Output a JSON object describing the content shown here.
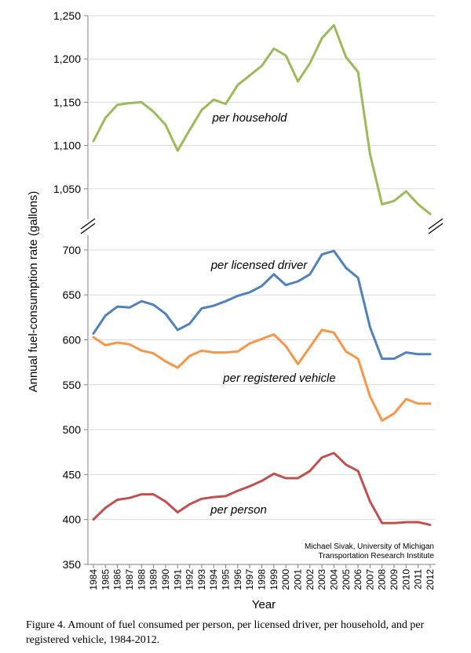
{
  "chart_data": {
    "type": "line",
    "x": [
      1984,
      1985,
      1986,
      1987,
      1988,
      1989,
      1990,
      1991,
      1992,
      1993,
      1994,
      1995,
      1996,
      1997,
      1998,
      1999,
      2000,
      2001,
      2002,
      2003,
      2004,
      2005,
      2006,
      2007,
      2008,
      2009,
      2010,
      2011,
      2012
    ],
    "xlabel": "Year",
    "ylabel": "Annual fuel-consumption rate (gallons)",
    "upper_panel": {
      "ylim": [
        1010,
        1250
      ],
      "yticks": [
        1050,
        1100,
        1150,
        1200,
        1250
      ]
    },
    "lower_panel": {
      "ylim": [
        350,
        720
      ],
      "yticks": [
        350,
        400,
        450,
        500,
        550,
        600,
        650,
        700
      ]
    },
    "axis_break": true,
    "grid": "horizontal",
    "series": [
      {
        "name": "per household",
        "panel": "upper",
        "color": "#9BBB59",
        "values": [
          1105,
          1132,
          1147,
          1149,
          1150,
          1139,
          1124,
          1094,
          1118,
          1141,
          1153,
          1148,
          1170,
          1181,
          1192,
          1212,
          1204,
          1174,
          1195,
          1224,
          1239,
          1202,
          1185,
          1090,
          1032,
          1036,
          1047,
          1032,
          1021
        ]
      },
      {
        "name": "per licensed driver",
        "panel": "lower",
        "color": "#4F81BD",
        "values": [
          607,
          627,
          637,
          636,
          643,
          639,
          629,
          611,
          618,
          635,
          638,
          643,
          649,
          653,
          660,
          673,
          661,
          665,
          673,
          695,
          699,
          680,
          669,
          614,
          579,
          579,
          586,
          584,
          584
        ]
      },
      {
        "name": "per registered vehicle",
        "panel": "lower",
        "color": "#F79646",
        "values": [
          603,
          594,
          597,
          595,
          588,
          585,
          576,
          569,
          582,
          588,
          586,
          586,
          587,
          596,
          601,
          606,
          593,
          573,
          592,
          611,
          608,
          587,
          579,
          537,
          510,
          518,
          534,
          529,
          529
        ]
      },
      {
        "name": "per person",
        "panel": "lower",
        "color": "#C0504D",
        "values": [
          400,
          413,
          422,
          424,
          428,
          428,
          420,
          408,
          417,
          423,
          425,
          426,
          432,
          437,
          443,
          451,
          446,
          446,
          454,
          469,
          474,
          461,
          454,
          420,
          396,
          396,
          397,
          397,
          394
        ]
      }
    ],
    "credit": [
      "Michael Sivak, University of Michigan",
      "Transportation Research Institute"
    ]
  },
  "caption": "Figure 4.  Amount of fuel consumed per person, per licensed driver, per household, and per registered vehicle, 1984-2012."
}
